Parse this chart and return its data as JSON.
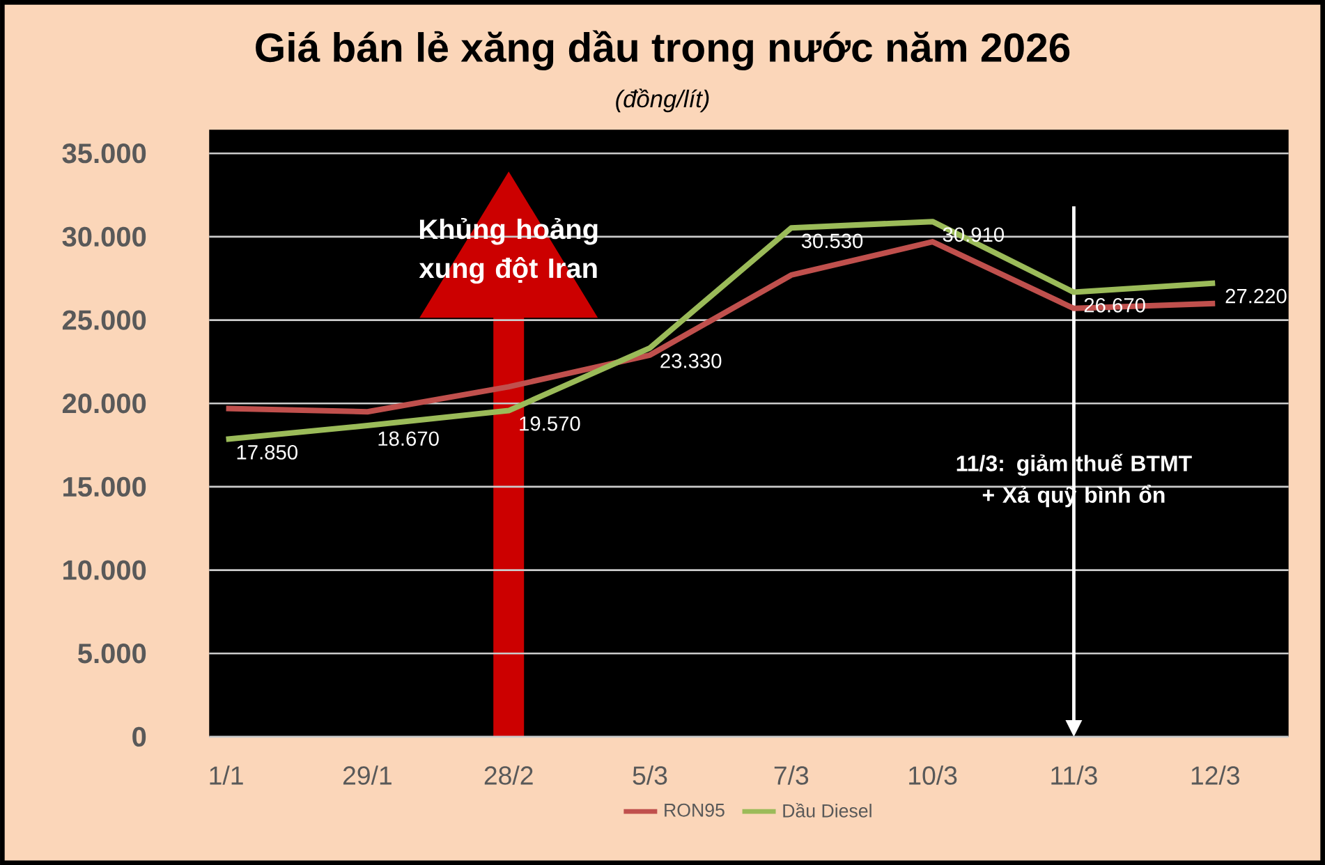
{
  "chart_data": {
    "type": "line",
    "title": "Giá bán lẻ xăng dầu trong nước năm 2026",
    "subtitle": "(đồng/lít)",
    "categories": [
      "1/1",
      "29/1",
      "28/2",
      "5/3",
      "7/3",
      "10/3",
      "11/3",
      "12/3"
    ],
    "series": [
      {
        "name": "RON95",
        "color": "#c0504d",
        "values": [
          19700,
          19500,
          21000,
          22900,
          27700,
          29700,
          25700,
          26000
        ]
      },
      {
        "name": "Dầu Diesel",
        "color": "#9bbb59",
        "values": [
          17850,
          18670,
          19570,
          23330,
          30530,
          30910,
          26670,
          27220
        ],
        "value_labels": [
          "17.850",
          "18.670",
          "19.570",
          "23.330",
          "30.530",
          "30.910",
          "26.670",
          "27.220"
        ]
      }
    ],
    "ylim": [
      0,
      35000
    ],
    "yticks": [
      {
        "value": 0,
        "label": "0"
      },
      {
        "value": 5000,
        "label": "5.000"
      },
      {
        "value": 10000,
        "label": "10.000"
      },
      {
        "value": 15000,
        "label": "15.000"
      },
      {
        "value": 20000,
        "label": "20.000"
      },
      {
        "value": 25000,
        "label": "25.000"
      },
      {
        "value": 30000,
        "label": "30.000"
      },
      {
        "value": 35000,
        "label": "35.000"
      }
    ],
    "grid": "y",
    "legend": "bottom",
    "marker": "none",
    "line_style": "solid",
    "annotations": [
      "Khủng hoảng xung đột Iran"
    ],
    "ref_lines": [
      {
        "axis": "x",
        "value": "11/3",
        "label": "11/3: giảm thuế BTMT + Xả quỹ bình ổn",
        "color": "#ffffff"
      }
    ]
  }
}
